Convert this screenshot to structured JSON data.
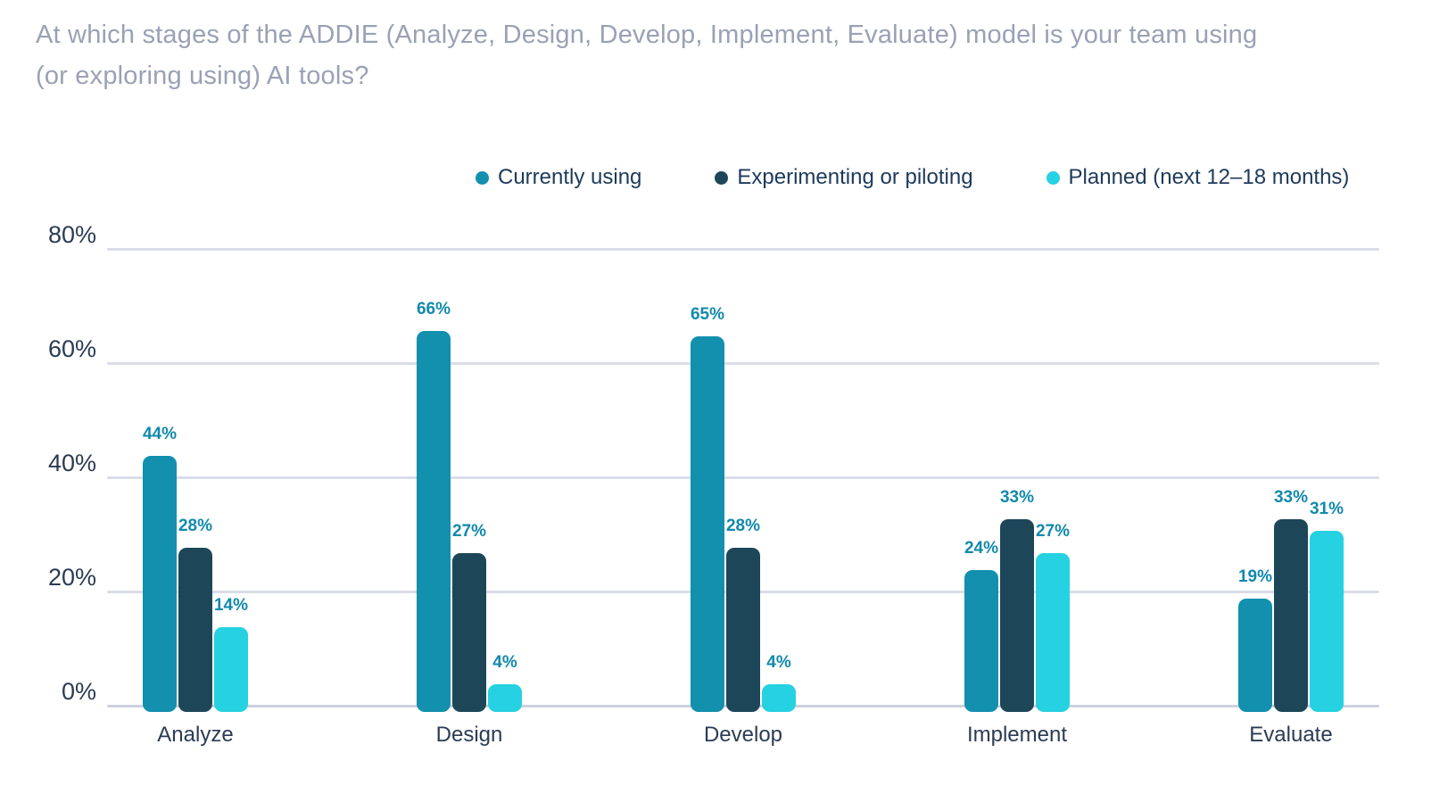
{
  "title_line1": "At which stages of the ADDIE (Analyze, Design, Develop, Implement, Evaluate) model is your team using",
  "title_line2": "(or exploring using) AI tools?",
  "legend": {
    "items": [
      {
        "label": "Currently using",
        "color": "#1290ae"
      },
      {
        "label": "Experimenting or piloting",
        "color": "#1d4759"
      },
      {
        "label": "Planned (next 12–18 months)",
        "color": "#26d1e1"
      }
    ]
  },
  "chart_data": {
    "type": "bar",
    "title": "At which stages of the ADDIE (Analyze, Design, Develop, Implement, Evaluate) model is your team using (or exploring using) AI tools?",
    "categories": [
      "Analyze",
      "Design",
      "Develop",
      "Implement",
      "Evaluate"
    ],
    "series": [
      {
        "name": "Currently using",
        "color": "#1290ae",
        "values": [
          44,
          66,
          65,
          24,
          19
        ]
      },
      {
        "name": "Experimenting or piloting",
        "color": "#1d4759",
        "values": [
          28,
          27,
          28,
          33,
          33
        ]
      },
      {
        "name": "Planned (next 12–18 months)",
        "color": "#26d1e1",
        "values": [
          14,
          4,
          4,
          27,
          31
        ]
      }
    ],
    "value_suffix": "%",
    "y_ticks": [
      {
        "label": "0%",
        "value": 0
      },
      {
        "label": "20%",
        "value": 20
      },
      {
        "label": "40%",
        "value": 40
      },
      {
        "label": "60%",
        "value": 60
      },
      {
        "label": "80%",
        "value": 80
      }
    ],
    "ylim": [
      0,
      80
    ],
    "grid": true,
    "legend_position": "top",
    "value_label_color": "#1289ac",
    "axis_text_color": "#2b3b54",
    "gridline_color": "#dadde8",
    "title_color": "#9aa1b5",
    "background_color": "#ffffff"
  }
}
